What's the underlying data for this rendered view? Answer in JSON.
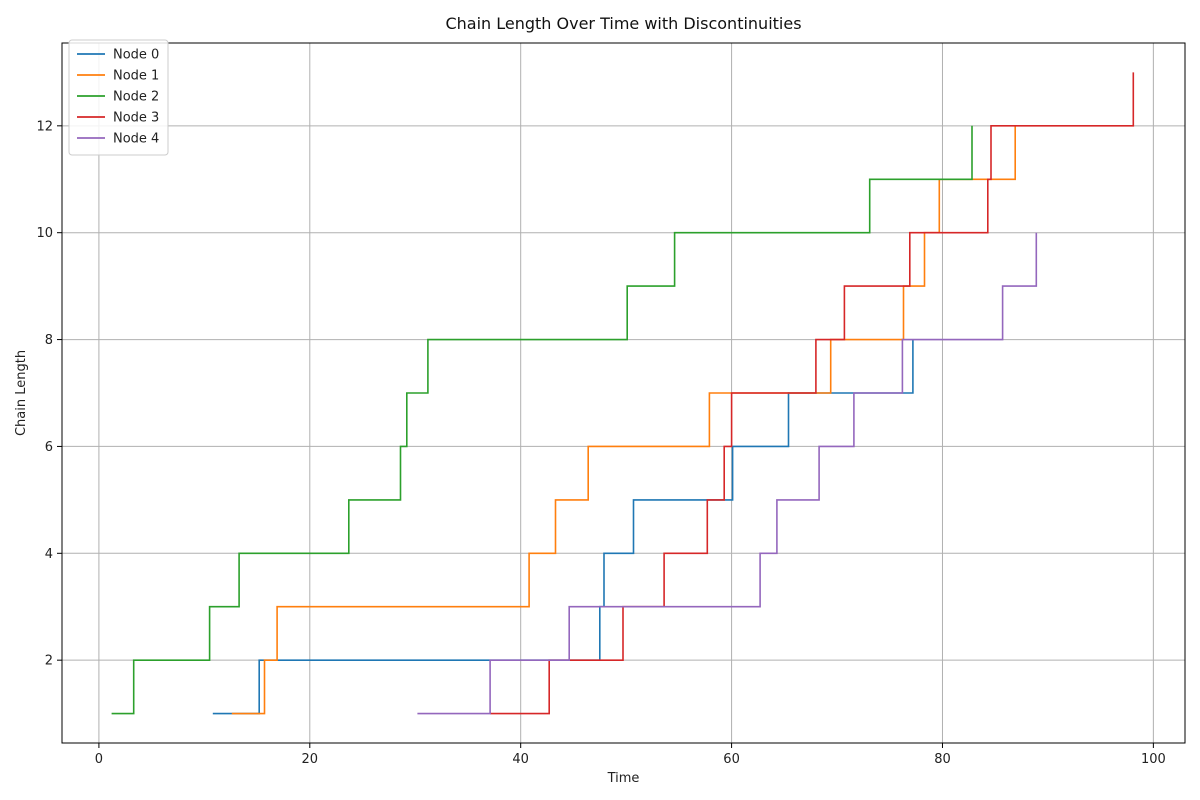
{
  "chart_data": {
    "type": "line",
    "title": "Chain Length Over Time with Discontinuities",
    "xlabel": "Time",
    "ylabel": "Chain Length",
    "xlim": [
      -3.5,
      103
    ],
    "ylim": [
      0.45,
      13.55
    ],
    "x_ticks": [
      0,
      20,
      40,
      60,
      80,
      100
    ],
    "y_ticks": [
      2,
      4,
      6,
      8,
      10,
      12
    ],
    "grid": true,
    "legend_position": "top-left",
    "series": [
      {
        "name": "Node 0",
        "color": "#1f77b4",
        "points": [
          [
            10.8,
            1
          ],
          [
            15.2,
            1
          ],
          [
            15.2,
            2
          ],
          [
            47.5,
            2
          ],
          [
            47.5,
            3
          ],
          [
            47.9,
            3
          ],
          [
            47.9,
            4
          ],
          [
            50.7,
            4
          ],
          [
            50.7,
            5
          ],
          [
            60.1,
            5
          ],
          [
            60.1,
            6
          ],
          [
            65.4,
            6
          ],
          [
            65.4,
            7
          ],
          [
            77.2,
            7
          ],
          [
            77.2,
            8
          ]
        ]
      },
      {
        "name": "Node 1",
        "color": "#ff7f0e",
        "points": [
          [
            12.6,
            1
          ],
          [
            15.7,
            1
          ],
          [
            15.7,
            2
          ],
          [
            16.9,
            2
          ],
          [
            16.9,
            3
          ],
          [
            40.8,
            3
          ],
          [
            40.8,
            4
          ],
          [
            43.3,
            4
          ],
          [
            43.3,
            5
          ],
          [
            46.4,
            5
          ],
          [
            46.4,
            6
          ],
          [
            57.9,
            6
          ],
          [
            57.9,
            7
          ],
          [
            69.4,
            7
          ],
          [
            69.4,
            8
          ],
          [
            76.3,
            8
          ],
          [
            76.3,
            9
          ],
          [
            78.3,
            9
          ],
          [
            78.3,
            10
          ],
          [
            79.7,
            10
          ],
          [
            79.7,
            11
          ],
          [
            86.9,
            11
          ],
          [
            86.9,
            12
          ]
        ]
      },
      {
        "name": "Node 2",
        "color": "#2ca02c",
        "points": [
          [
            1.2,
            1
          ],
          [
            3.3,
            1
          ],
          [
            3.3,
            2
          ],
          [
            10.5,
            2
          ],
          [
            10.5,
            3
          ],
          [
            13.3,
            3
          ],
          [
            13.3,
            4
          ],
          [
            23.7,
            4
          ],
          [
            23.7,
            5
          ],
          [
            28.6,
            5
          ],
          [
            28.6,
            6
          ],
          [
            29.2,
            6
          ],
          [
            29.2,
            7
          ],
          [
            31.2,
            7
          ],
          [
            31.2,
            8
          ],
          [
            50.1,
            8
          ],
          [
            50.1,
            9
          ],
          [
            54.6,
            9
          ],
          [
            54.6,
            10
          ],
          [
            73.1,
            10
          ],
          [
            73.1,
            11
          ],
          [
            82.8,
            11
          ],
          [
            82.8,
            12
          ]
        ]
      },
      {
        "name": "Node 3",
        "color": "#d62728",
        "points": [
          [
            37.1,
            1
          ],
          [
            42.7,
            1
          ],
          [
            42.7,
            2
          ],
          [
            49.7,
            2
          ],
          [
            49.7,
            3
          ],
          [
            53.6,
            3
          ],
          [
            53.6,
            4
          ],
          [
            57.7,
            4
          ],
          [
            57.7,
            5
          ],
          [
            59.3,
            5
          ],
          [
            59.3,
            6
          ],
          [
            60,
            6
          ],
          [
            60,
            7
          ],
          [
            68,
            7
          ],
          [
            68,
            8
          ],
          [
            70.7,
            8
          ],
          [
            70.7,
            9
          ],
          [
            76.9,
            9
          ],
          [
            76.9,
            10
          ],
          [
            84.3,
            10
          ],
          [
            84.3,
            11
          ],
          [
            84.6,
            11
          ],
          [
            84.6,
            12
          ],
          [
            98.1,
            12
          ],
          [
            98.1,
            13
          ]
        ]
      },
      {
        "name": "Node 4",
        "color": "#9467bd",
        "points": [
          [
            30.2,
            1
          ],
          [
            37.1,
            1
          ],
          [
            37.1,
            2
          ],
          [
            44.6,
            2
          ],
          [
            44.6,
            3
          ],
          [
            62.7,
            3
          ],
          [
            62.7,
            4
          ],
          [
            64.3,
            4
          ],
          [
            64.3,
            5
          ],
          [
            68.3,
            5
          ],
          [
            68.3,
            6
          ],
          [
            71.6,
            6
          ],
          [
            71.6,
            7
          ],
          [
            76.2,
            7
          ],
          [
            76.2,
            8
          ],
          [
            85.7,
            8
          ],
          [
            85.7,
            9
          ],
          [
            88.9,
            9
          ],
          [
            88.9,
            10
          ]
        ]
      }
    ]
  }
}
